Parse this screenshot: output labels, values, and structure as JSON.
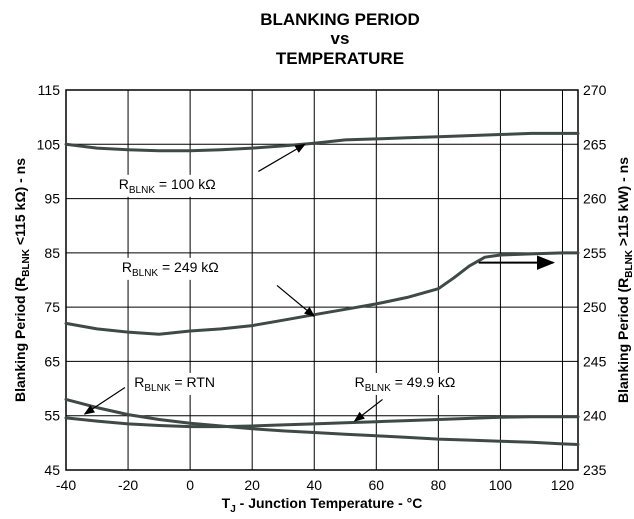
{
  "chart_data": {
    "type": "line",
    "title_lines": [
      "BLANKING PERIOD",
      "vs",
      "TEMPERATURE"
    ],
    "xlabel": {
      "prefix": "T",
      "sub": "J",
      "suffix": " - Junction Temperature - °C"
    },
    "ylabel_left": {
      "prefix": "Blanking Period (R",
      "sub": "BLNK",
      "suffix": " <115 kΩ) - ns"
    },
    "ylabel_right": {
      "prefix": "Blanking Period (R",
      "sub": "BLNK",
      "suffix": " >115 kW) - ns"
    },
    "xlim": [
      -40,
      125
    ],
    "ylim_left": [
      45,
      115
    ],
    "ylim_right": [
      235,
      270
    ],
    "x_ticks": [
      "-40",
      "-20",
      "0",
      "20",
      "40",
      "60",
      "80",
      "100",
      "120"
    ],
    "y_ticks_left": [
      "45",
      "55",
      "65",
      "75",
      "85",
      "95",
      "105",
      "115"
    ],
    "y_ticks_right": [
      "235",
      "240",
      "245",
      "250",
      "255",
      "260",
      "265",
      "270"
    ],
    "grid": true,
    "series": [
      {
        "name": "RBLNK = 100 kΩ",
        "axis": "left",
        "x": [
          -40,
          -30,
          -20,
          -10,
          0,
          10,
          20,
          30,
          40,
          50,
          60,
          70,
          80,
          90,
          100,
          110,
          120,
          125
        ],
        "y": [
          105,
          104.3,
          104,
          103.8,
          103.8,
          104,
          104.3,
          104.7,
          105.2,
          105.8,
          106,
          106.2,
          106.4,
          106.6,
          106.8,
          107,
          107,
          107
        ]
      },
      {
        "name": "RBLNK = 249 kΩ",
        "axis": "right",
        "x": [
          -40,
          -30,
          -20,
          -10,
          0,
          10,
          20,
          30,
          40,
          50,
          60,
          70,
          80,
          85,
          90,
          95,
          100,
          110,
          120,
          125
        ],
        "y": [
          248.5,
          248,
          247.7,
          247.5,
          247.8,
          248,
          248.3,
          248.8,
          249.3,
          249.8,
          250.3,
          250.9,
          251.7,
          252.7,
          253.8,
          254.6,
          254.8,
          254.9,
          255,
          255
        ]
      },
      {
        "name": "RBLNK = RTN",
        "axis": "left",
        "x": [
          -40,
          -30,
          -20,
          -10,
          0,
          10,
          20,
          30,
          40,
          50,
          60,
          70,
          80,
          90,
          100,
          110,
          120,
          125
        ],
        "y": [
          58,
          56.5,
          55.2,
          54.3,
          53.6,
          53.1,
          52.6,
          52.2,
          51.9,
          51.6,
          51.3,
          51,
          50.7,
          50.5,
          50.3,
          50.1,
          49.8,
          49.7
        ]
      },
      {
        "name": "RBLNK = 49.9 kΩ",
        "axis": "left",
        "x": [
          -40,
          -30,
          -20,
          -10,
          0,
          10,
          20,
          30,
          40,
          50,
          60,
          70,
          80,
          90,
          100,
          110,
          120,
          125
        ],
        "y": [
          54.6,
          54,
          53.5,
          53.2,
          53,
          53,
          53.1,
          53.3,
          53.5,
          53.7,
          53.9,
          54.1,
          54.3,
          54.5,
          54.7,
          54.8,
          54.8,
          54.8
        ]
      }
    ],
    "annotations": [
      {
        "prefix": "R",
        "sub": "BLNK",
        "suffix": " = 100 kΩ",
        "text_at": [
          -23,
          96.8
        ],
        "arrow_from": [
          22,
          100
        ],
        "arrow_to": [
          37,
          105
        ]
      },
      {
        "prefix": "R",
        "sub": "BLNK",
        "suffix": " = 249 kΩ",
        "text_at": [
          -22,
          81.5
        ],
        "arrow_from": [
          28,
          79
        ],
        "arrow_to": [
          40,
          73.3
        ]
      },
      {
        "prefix": "R",
        "sub": "BLNK",
        "suffix": " = RTN",
        "text_at": [
          -18,
          60.3
        ],
        "arrow_from": [
          -21,
          60.2
        ],
        "arrow_to": [
          -34,
          55.3
        ]
      },
      {
        "prefix": "R",
        "sub": "BLNK",
        "suffix": " = 49.9 kΩ",
        "text_at": [
          53,
          60.3
        ],
        "arrow_from": [
          62,
          58
        ],
        "arrow_to": [
          53,
          54
        ]
      }
    ],
    "axis_arrow": {
      "from": [
        93,
        83.2
      ],
      "to": [
        117,
        83.2
      ],
      "points_to": "right axis"
    }
  }
}
